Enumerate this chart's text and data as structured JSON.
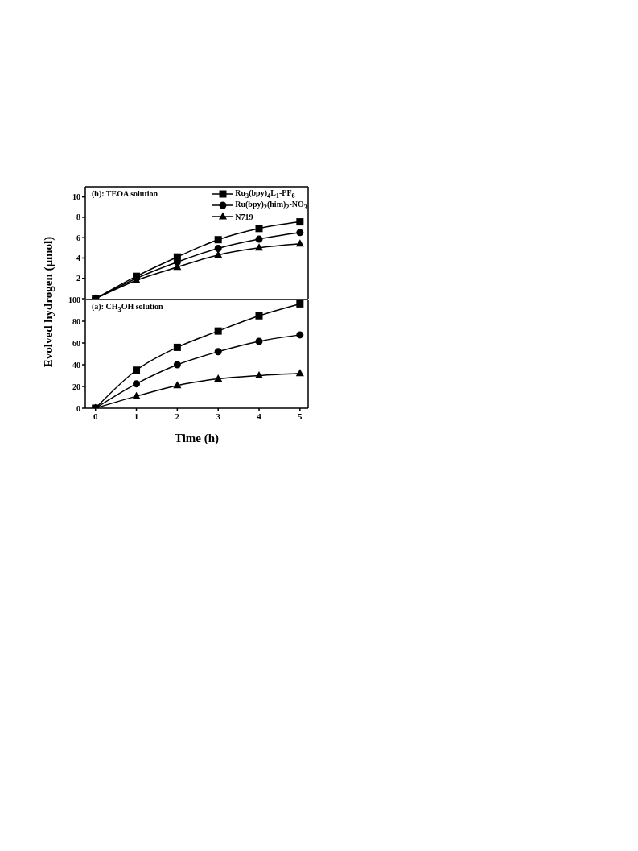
{
  "chart_data": [
    {
      "type": "line",
      "x": [
        0,
        1,
        2,
        3,
        4,
        5
      ],
      "xlim": [
        -0.25,
        5.2
      ],
      "xticks": [
        0,
        1,
        2,
        3,
        4,
        5
      ],
      "ylim": [
        0,
        11
      ],
      "yticks": [
        {
          "value": 0,
          "label": null
        },
        2,
        4,
        6,
        8,
        10
      ],
      "tick_labels": "y",
      "ylabel": "Evolved hydrogen (μmol)",
      "legend": "top right",
      "grid": false,
      "annotations": [
        "(b): TEOA solution"
      ],
      "series": [
        {
          "name": "Ru$_{3}$(bpy)$_{4}$L$_{1}$-PF$_{6}$",
          "color": "#000000",
          "marker": "square",
          "values": [
            0,
            2.2,
            4.1,
            5.8,
            6.9,
            7.55
          ]
        },
        {
          "name": "Ru(bpy)$_{2}$(him)$_{2}$-NO$_{3}$",
          "color": "#000000",
          "marker": "circle",
          "values": [
            0,
            2.0,
            3.6,
            4.95,
            5.85,
            6.5
          ]
        },
        {
          "name": "N719",
          "color": "#000000",
          "marker": "triangle",
          "values": [
            0,
            1.8,
            3.1,
            4.3,
            5.0,
            5.4
          ]
        }
      ]
    },
    {
      "type": "line",
      "x": [
        0,
        1,
        2,
        3,
        4,
        5
      ],
      "xlim": [
        -0.25,
        5.2
      ],
      "xticks": [
        0,
        1,
        2,
        3,
        4,
        5
      ],
      "ylim": [
        0,
        100
      ],
      "yticks": [
        0,
        20,
        40,
        60,
        80,
        100
      ],
      "xlabel": "Time (h)",
      "legend": false,
      "grid": false,
      "annotations": [
        "(a): CH$_{3}$OH solution"
      ],
      "series": [
        {
          "color": "#000000",
          "marker": "square",
          "values": [
            0,
            35,
            56,
            71,
            85,
            96
          ]
        },
        {
          "color": "#000000",
          "marker": "circle",
          "values": [
            0,
            22.5,
            40,
            52,
            61.5,
            67.5
          ]
        },
        {
          "color": "#000000",
          "marker": "triangle",
          "values": [
            0,
            11,
            21,
            27,
            30,
            32
          ]
        }
      ]
    }
  ]
}
